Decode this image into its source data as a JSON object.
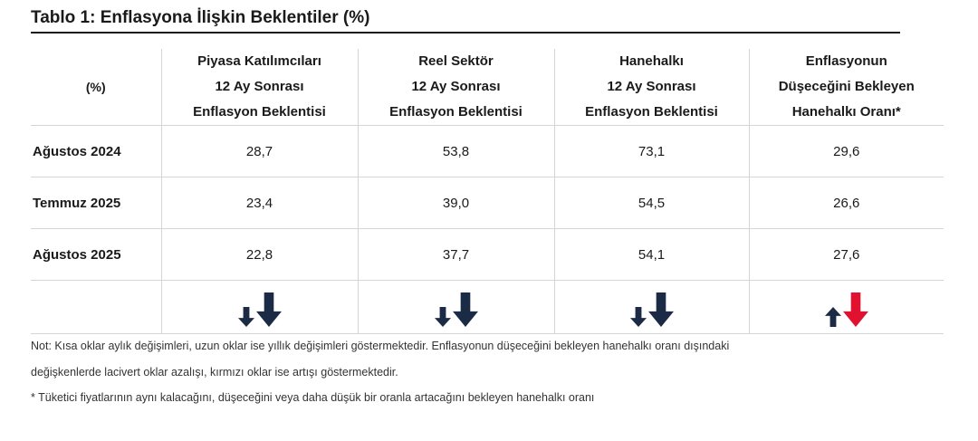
{
  "title": "Tablo 1: Enflasyona İlişkin Beklentiler (%)",
  "table": {
    "corner_label": "(%)",
    "columns": [
      {
        "line1": "Piyasa Katılımcıları",
        "line2": "12 Ay Sonrası",
        "line3": "Enflasyon Beklentisi"
      },
      {
        "line1": "Reel Sektör",
        "line2": "12 Ay Sonrası",
        "line3": "Enflasyon Beklentisi"
      },
      {
        "line1": "Hanehalkı",
        "line2": "12 Ay Sonrası",
        "line3": "Enflasyon Beklentisi"
      },
      {
        "line1": "Enflasyonun",
        "line2": "Düşeceğini Bekleyen",
        "line3": "Hanehalkı Oranı*"
      }
    ],
    "rows": [
      {
        "label": "Ağustos 2024",
        "values": [
          "28,7",
          "53,8",
          "73,1",
          "29,6"
        ]
      },
      {
        "label": "Temmuz 2025",
        "values": [
          "23,4",
          "39,0",
          "54,5",
          "26,6"
        ]
      },
      {
        "label": "Ağustos 2025",
        "values": [
          "22,8",
          "37,7",
          "54,1",
          "27,6"
        ]
      }
    ],
    "arrows": [
      {
        "short": "down",
        "short_color": "#1c2b45",
        "long": "down",
        "long_color": "#1c2b45"
      },
      {
        "short": "down",
        "short_color": "#1c2b45",
        "long": "down",
        "long_color": "#1c2b45"
      },
      {
        "short": "down",
        "short_color": "#1c2b45",
        "long": "down",
        "long_color": "#1c2b45"
      },
      {
        "short": "up",
        "short_color": "#1c2b45",
        "long": "down",
        "long_color": "#e0122f"
      }
    ]
  },
  "notes": {
    "note_line1": "Not: Kısa oklar aylık değişimleri, uzun oklar ise yıllık değişimleri göstermektedir. Enflasyonun düşeceğini bekleyen hanehalkı oranı dışındaki",
    "note_line2": "değişkenlerde lacivert oklar azalışı, kırmızı oklar ise artışı göstermektedir.",
    "footnote": "* Tüketici fiyatlarının aynı kalacağını, düşeceğini veya daha düşük bir oranla artacağını bekleyen hanehalkı oranı"
  }
}
